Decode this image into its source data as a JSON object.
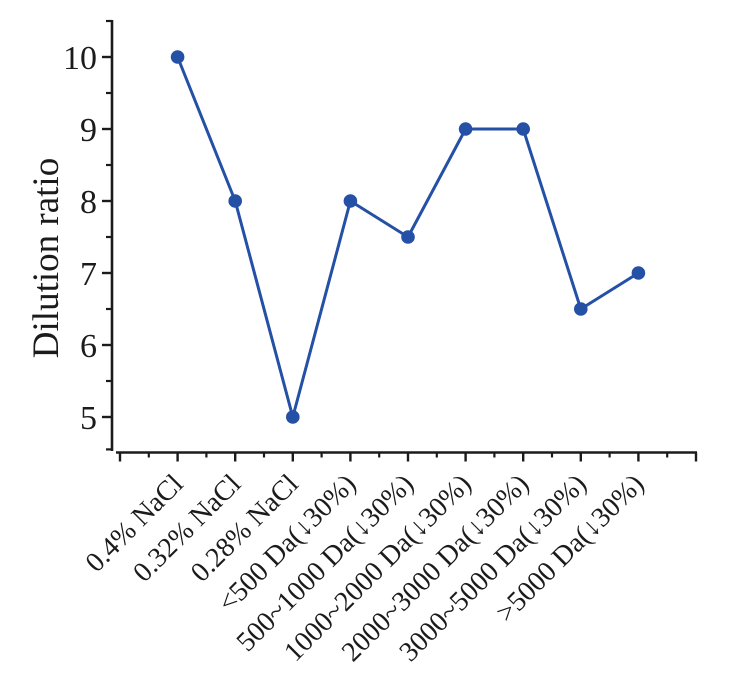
{
  "chart_data": {
    "type": "line",
    "title": "",
    "xlabel": "",
    "ylabel": "Dilution ratio",
    "categories": [
      "0.4% NaCl",
      "0.32% NaCl",
      "0.28% NaCl",
      "<500 Da(↓30%)",
      "500~1000 Da(↓30%)",
      "1000~2000 Da(↓30%)",
      "2000~3000 Da(↓30%)",
      "3000~5000 Da(↓30%)",
      ">5000 Da(↓30%)"
    ],
    "series": [
      {
        "name": "Dilution ratio",
        "values": [
          10,
          8,
          5,
          8,
          7.5,
          9,
          9,
          6.5,
          7
        ]
      }
    ],
    "ylim": [
      4.5,
      10.5
    ],
    "yticks": [
      5,
      6,
      7,
      8,
      9,
      10
    ],
    "y_minor_ticks": [
      4.55,
      5.5,
      6.5,
      7.5,
      8.5,
      9.5,
      10.5
    ],
    "grid": false,
    "legend": "none",
    "marker": "circle",
    "x_tick_rotation_deg": 45,
    "colors": {
      "line": "#2450a5",
      "marker": "#2450a5",
      "axis": "#1b1b1b",
      "text": "#1b1b1b",
      "background": "#ffffff"
    }
  }
}
